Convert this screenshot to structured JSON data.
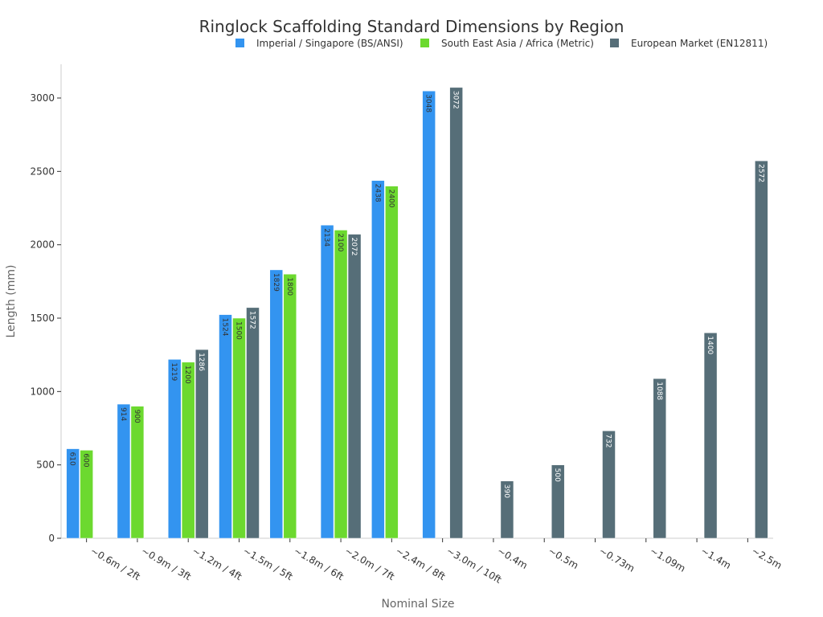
{
  "chart_data": {
    "type": "bar",
    "title": "Ringlock Scaffolding Standard Dimensions by Region",
    "xlabel": "Nominal Size",
    "ylabel": "Length (mm)",
    "ylim": [
      0,
      3230
    ],
    "yticks": [
      0,
      500,
      1000,
      1500,
      2000,
      2500,
      3000
    ],
    "legend_position": "top-right",
    "grid": false,
    "categories": [
      "~0.6m / 2ft",
      "~0.9m / 3ft",
      "~1.2m / 4ft",
      "~1.5m / 5ft",
      "~1.8m / 6ft",
      "~2.0m / 7ft",
      "~2.4m / 8ft",
      "~3.0m / 10ft",
      "~0.4m",
      "~0.5m",
      "~0.73m",
      "~1.09m",
      "~1.4m",
      "~2.5m"
    ],
    "series": [
      {
        "name": "Imperial / Singapore (BS/ANSI)",
        "color": "#3394f0",
        "label_color": "#333333",
        "values": [
          610,
          914,
          1219,
          1524,
          1829,
          2134,
          2438,
          3048,
          null,
          null,
          null,
          null,
          null,
          null
        ]
      },
      {
        "name": "South East Asia / Africa (Metric)",
        "color": "#6cd92f",
        "label_color": "#333333",
        "values": [
          600,
          900,
          1200,
          1500,
          1800,
          2100,
          2400,
          null,
          null,
          null,
          null,
          null,
          null,
          null
        ]
      },
      {
        "name": "European Market (EN12811)",
        "color": "#566e78",
        "label_color": "#ffffff",
        "values": [
          null,
          null,
          1286,
          1572,
          null,
          2072,
          null,
          3072,
          390,
          500,
          732,
          1088,
          1400,
          2572
        ]
      }
    ]
  }
}
